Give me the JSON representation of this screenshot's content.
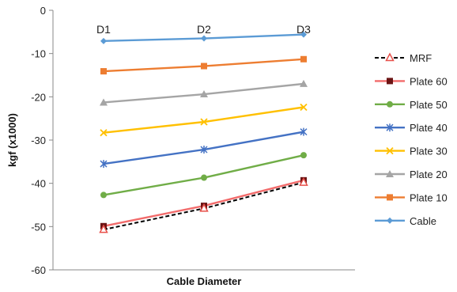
{
  "chart_data": {
    "type": "line",
    "title": "",
    "xlabel": "Cable Diameter",
    "ylabel": "kgf (x1000)",
    "categories": [
      "D1",
      "D2",
      "D3"
    ],
    "ylim": [
      -60,
      0
    ],
    "yticks": [
      0,
      -10,
      -20,
      -30,
      -40,
      -50,
      -60
    ],
    "grid": false,
    "legend_position": "right",
    "series": [
      {
        "name": "MRF",
        "values": [
          -50.7,
          -45.8,
          -39.8
        ],
        "color": "#e8504a",
        "line_color": "#000000",
        "dashed": true,
        "marker": "triangle-open"
      },
      {
        "name": "Plate 60",
        "values": [
          -49.9,
          -45.2,
          -39.3
        ],
        "color": "#f26b6b",
        "marker_color": "#6b1414",
        "marker": "square"
      },
      {
        "name": "Plate 50",
        "values": [
          -42.7,
          -38.7,
          -33.5
        ],
        "color": "#70ad47",
        "marker": "circle"
      },
      {
        "name": "Plate 40",
        "values": [
          -35.5,
          -32.2,
          -28.1
        ],
        "color": "#4472c4",
        "marker": "asterisk"
      },
      {
        "name": "Plate 30",
        "values": [
          -28.3,
          -25.8,
          -22.4
        ],
        "color": "#ffc000",
        "marker": "x"
      },
      {
        "name": "Plate 20",
        "values": [
          -21.3,
          -19.4,
          -17.0
        ],
        "color": "#a5a5a5",
        "marker": "triangle"
      },
      {
        "name": "Plate 10",
        "values": [
          -14.1,
          -12.9,
          -11.3
        ],
        "color": "#ed7d31",
        "marker": "square"
      },
      {
        "name": "Cable",
        "values": [
          -7.1,
          -6.5,
          -5.6
        ],
        "color": "#5b9bd5",
        "marker": "diamond"
      }
    ]
  }
}
